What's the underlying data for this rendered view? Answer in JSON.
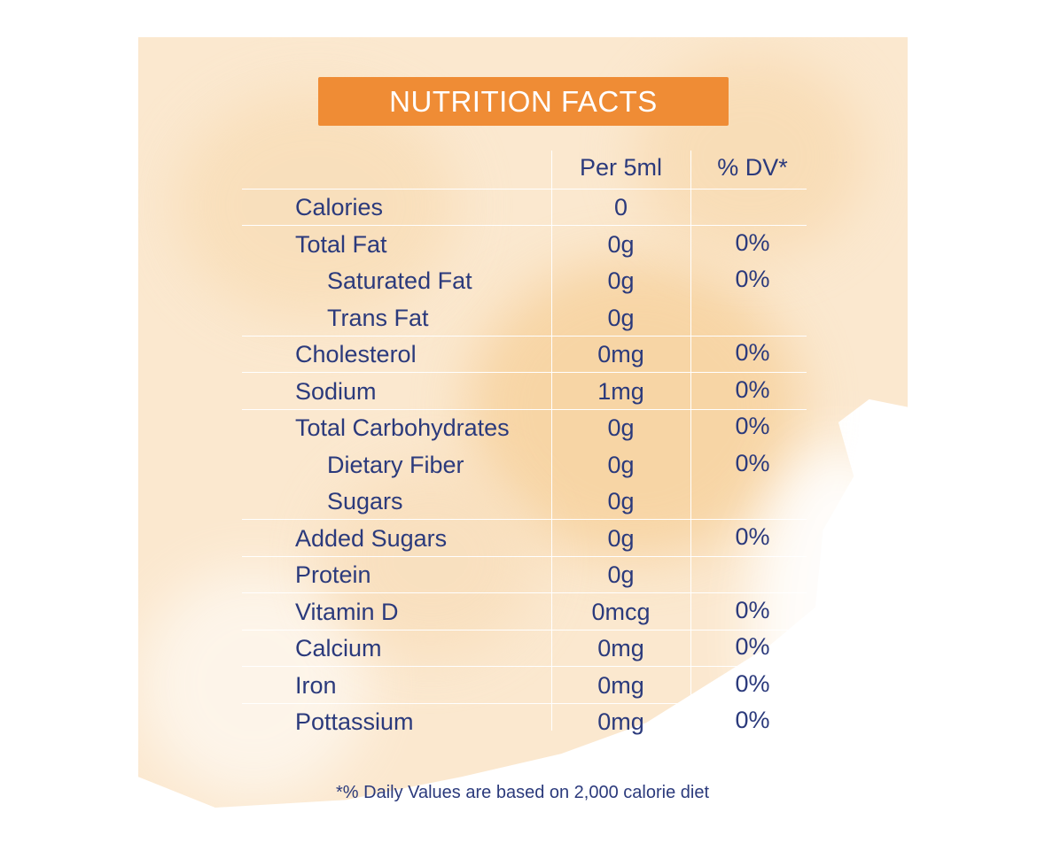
{
  "title": "NUTRITION FACTS",
  "columns": {
    "per": "Per 5ml",
    "dv": "% DV*"
  },
  "rows": [
    {
      "label": "Calories",
      "per": "0",
      "dv": "",
      "indent": false
    },
    {
      "label": "Total Fat",
      "per": "0g",
      "dv": "0%",
      "indent": false
    },
    {
      "label": "Saturated Fat",
      "per": "0g",
      "dv": "0%",
      "indent": true
    },
    {
      "label": "Trans Fat",
      "per": "0g",
      "dv": "",
      "indent": true
    },
    {
      "label": "Cholesterol",
      "per": "0mg",
      "dv": "0%",
      "indent": false
    },
    {
      "label": "Sodium",
      "per": "1mg",
      "dv": "0%",
      "indent": false
    },
    {
      "label": "Total Carbohydrates",
      "per": "0g",
      "dv": "0%",
      "indent": false
    },
    {
      "label": "Dietary Fiber",
      "per": "0g",
      "dv": "0%",
      "indent": true
    },
    {
      "label": "Sugars",
      "per": "0g",
      "dv": "",
      "indent": true
    },
    {
      "label": "Added Sugars",
      "per": "0g",
      "dv": "0%",
      "indent": false
    },
    {
      "label": "Protein",
      "per": "0g",
      "dv": "",
      "indent": false
    },
    {
      "label": "Vitamin D",
      "per": "0mcg",
      "dv": "0%",
      "indent": false
    },
    {
      "label": "Calcium",
      "per": "0mg",
      "dv": "0%",
      "indent": false
    },
    {
      "label": "Iron",
      "per": "0mg",
      "dv": "0%",
      "indent": false
    },
    {
      "label": "Pottassium",
      "per": "0mg",
      "dv": "0%",
      "indent": false
    }
  ],
  "footnote": "*% Daily Values are based on 2,000 calorie diet",
  "colors": {
    "banner": "#ef8c35",
    "text": "#2b3a7c",
    "background_wash": "#fbe8cf"
  }
}
